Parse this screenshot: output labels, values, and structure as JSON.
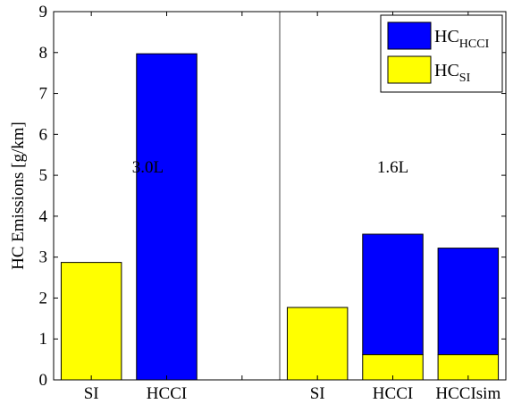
{
  "chart_data": {
    "type": "bar",
    "stacked": true,
    "categories": [
      "SI",
      "HCCI",
      "",
      "SI",
      "HCCI",
      "HCCIsim"
    ],
    "series": [
      {
        "name": "HC",
        "name_sub": "SI",
        "color": "#ffff00",
        "values": [
          2.87,
          0,
          0,
          1.77,
          0.62,
          0.62
        ]
      },
      {
        "name": "HC",
        "name_sub": "HCCI",
        "color": "#0000ff",
        "values": [
          0,
          7.97,
          0,
          0,
          2.94,
          2.6
        ]
      }
    ],
    "title": "",
    "xlabel": "",
    "ylabel": "HC Emissions [g/km]",
    "ylim": [
      0,
      9
    ],
    "yticks": [
      "0",
      "1",
      "2",
      "3",
      "4",
      "5",
      "6",
      "7",
      "8",
      "9"
    ],
    "annotations": [
      {
        "text": "3.0L",
        "x_category": 0.75,
        "y": 5.2
      },
      {
        "text": "1.6L",
        "x_category": 4.0,
        "y": 5.2
      }
    ],
    "divider_after_category": 2.5,
    "grid": false,
    "legend_position": "top-right"
  }
}
